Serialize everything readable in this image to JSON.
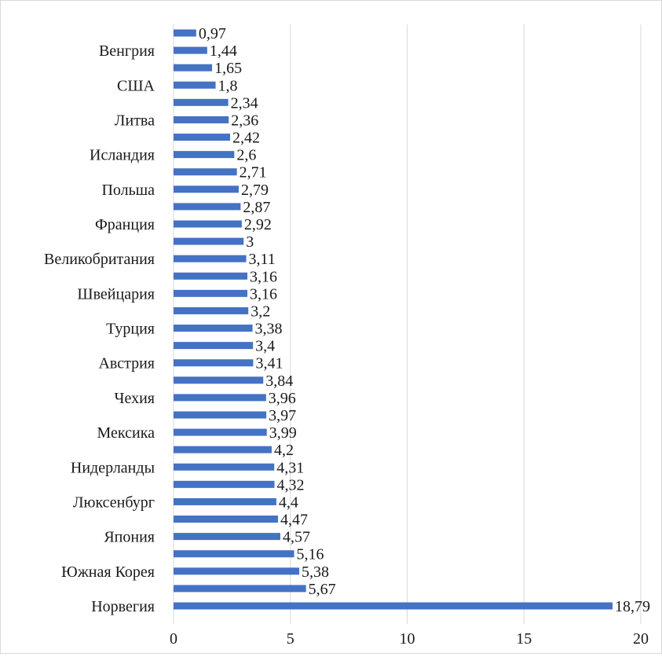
{
  "chart_data": {
    "type": "bar",
    "orientation": "horizontal",
    "categories": [
      "",
      "Венгрия",
      "",
      "США",
      "",
      "Литва",
      "",
      "Исландия",
      "",
      "Польша",
      "",
      "Франция",
      "",
      "Великобритания",
      "",
      "Швейцария",
      "",
      "Турция",
      "",
      "Австрия",
      "",
      "Чехия",
      "",
      "Мексика",
      "",
      "Нидерланды",
      "",
      "Люксенбург",
      "",
      "Япония",
      "",
      "Южная Корея",
      "",
      "Норвегия"
    ],
    "values": [
      0.97,
      1.44,
      1.65,
      1.8,
      2.34,
      2.36,
      2.42,
      2.6,
      2.71,
      2.79,
      2.87,
      2.92,
      3,
      3.11,
      3.16,
      3.16,
      3.2,
      3.38,
      3.4,
      3.41,
      3.84,
      3.96,
      3.97,
      3.99,
      4.2,
      4.31,
      4.32,
      4.4,
      4.47,
      4.57,
      5.16,
      5.38,
      5.67,
      18.79
    ],
    "value_labels": [
      "0,97",
      "1,44",
      "1,65",
      "1,8",
      "2,34",
      "2,36",
      "2,42",
      "2,6",
      "2,71",
      "2,79",
      "2,87",
      "2,92",
      "3",
      "3,11",
      "3,16",
      "3,16",
      "3,2",
      "3,38",
      "3,4",
      "3,41",
      "3,84",
      "3,96",
      "3,97",
      "3,99",
      "4,2",
      "4,31",
      "4,32",
      "4,4",
      "4,47",
      "4,57",
      "5,16",
      "5,38",
      "5,67",
      "18,79"
    ],
    "xlim": [
      0,
      20
    ],
    "x_ticks": [
      0,
      5,
      10,
      15,
      20
    ],
    "x_tick_labels": [
      "0",
      "5",
      "10",
      "15",
      "20"
    ],
    "grid": "vertical",
    "bar_color": "#4472c4",
    "grid_color": "#d9d9d9",
    "title": "",
    "xlabel": "",
    "ylabel": ""
  }
}
